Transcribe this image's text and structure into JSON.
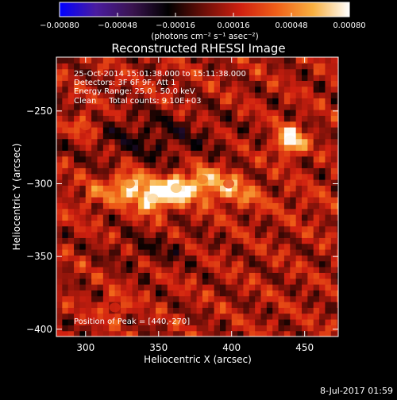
{
  "chart_data": {
    "type": "heatmap",
    "title": "Reconstructed RHESSI Image",
    "xlabel": "Heliocentric X (arcsec)",
    "ylabel": "Heliocentric Y (arcsec)",
    "xlim": [
      280,
      473
    ],
    "ylim": [
      -405,
      -213
    ],
    "x_ticks": [
      300,
      350,
      400,
      450
    ],
    "y_ticks": [
      -250,
      -300,
      -350,
      -400
    ],
    "x_tick_labels": [
      "300",
      "350",
      "400",
      "450"
    ],
    "y_tick_labels": [
      "−250",
      "−300",
      "−350",
      "−400"
    ],
    "colorbar": {
      "range": [
        -0.0008,
        0.0008
      ],
      "tick_labels": [
        "−0.00080",
        "−0.00048",
        "−0.00016",
        "0.00016",
        "0.00048",
        "0.00080"
      ],
      "units": "(photons cm⁻² s⁻¹ asec⁻²)",
      "colormap": [
        "#0000ff",
        "#4a1ca0",
        "#3a1450",
        "#000000",
        "#6e0f08",
        "#d02010",
        "#f06018",
        "#f8b040",
        "#ffffff"
      ]
    },
    "annotations": [
      "25-Oct-2014 15:01:38.000 to 15:11:38.000",
      "Detectors: 3F 6F 9F, Att 1",
      "Energy Range: 25.0 - 50.0 keV",
      "Clean     Total counts: 9.10E+03"
    ],
    "peak_label": "Position of Peak = [440,-270]",
    "sources": [
      {
        "x": 440,
        "y": -270,
        "intensity": 0.00078
      },
      {
        "x": 346,
        "y": -310,
        "intensity": 0.0007
      },
      {
        "x": 362,
        "y": -303,
        "intensity": 0.00066
      },
      {
        "x": 330,
        "y": -300,
        "intensity": 0.00052
      },
      {
        "x": 380,
        "y": -297,
        "intensity": 0.00048
      },
      {
        "x": 398,
        "y": -300,
        "intensity": 0.00034
      },
      {
        "x": 300,
        "y": -260,
        "intensity": 0.0003
      },
      {
        "x": 320,
        "y": -385,
        "intensity": 0.00022
      }
    ]
  },
  "footer": {
    "timestamp": "8-Jul-2017 01:59"
  }
}
